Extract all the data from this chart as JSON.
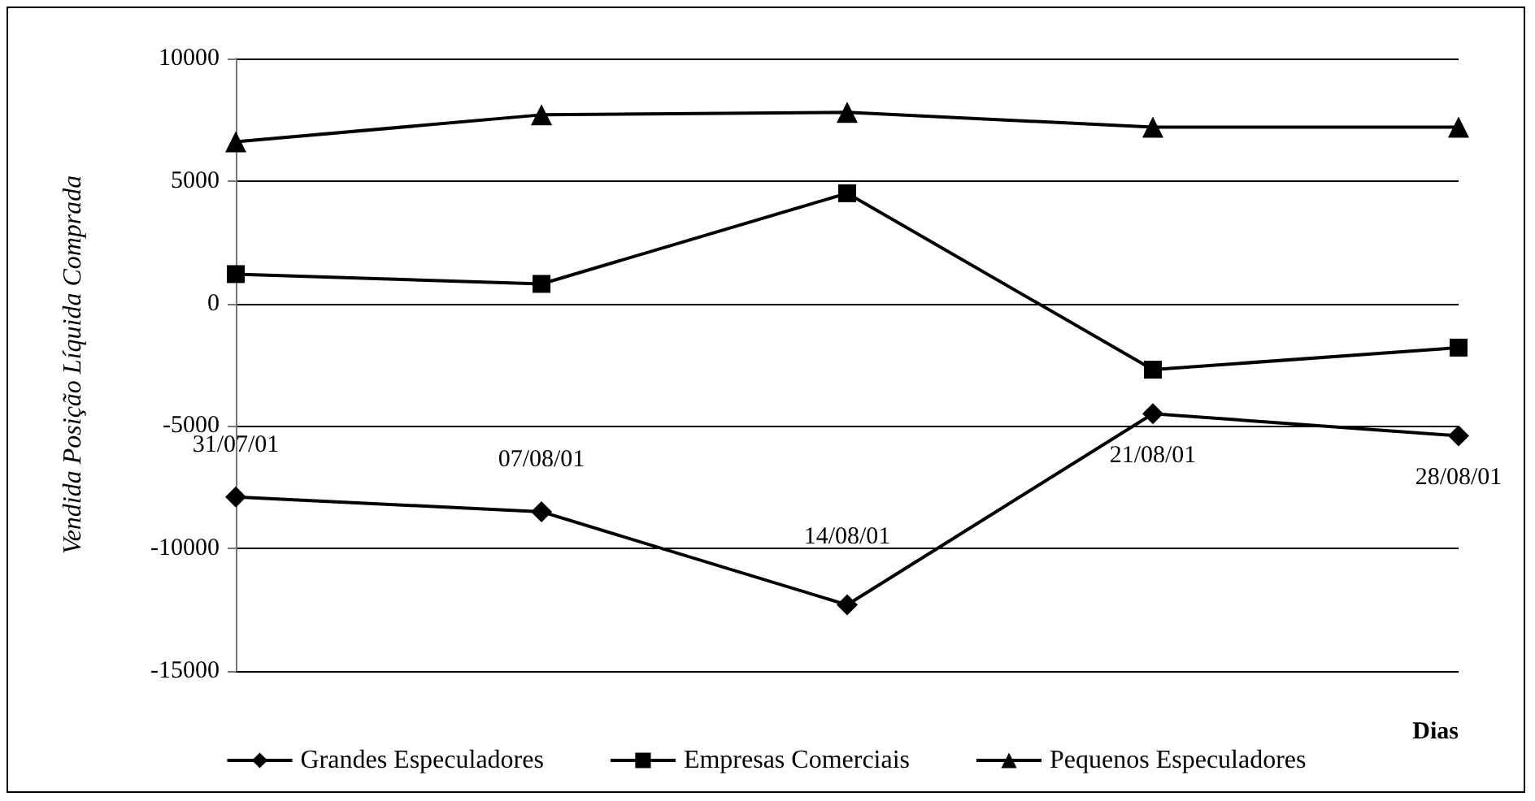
{
  "chart_data": {
    "type": "line",
    "xlabel": "Dias",
    "ylabel": "Vendida Posição Líquida Comprada",
    "categories": [
      "31/07/01",
      "07/08/01",
      "14/08/01",
      "21/08/01",
      "28/08/01"
    ],
    "series": [
      {
        "name": "Grandes Especuladores",
        "color": "#000000",
        "marker": "diamond",
        "values": [
          -7900,
          -8500,
          -12300,
          -4500,
          -5400
        ]
      },
      {
        "name": "Empresas Comerciais",
        "color": "#000000",
        "marker": "square",
        "values": [
          1200,
          800,
          4500,
          -2700,
          -1800
        ]
      },
      {
        "name": "Pequenos Especuladores",
        "color": "#000000",
        "marker": "triangle",
        "values": [
          6600,
          7700,
          7800,
          7200,
          7200
        ]
      }
    ],
    "ylim": [
      -15000,
      10000
    ],
    "yticks": [
      -15000,
      -10000,
      -5000,
      0,
      5000,
      10000
    ],
    "grid": "y",
    "legend": "bottom",
    "line_style": "solid"
  }
}
